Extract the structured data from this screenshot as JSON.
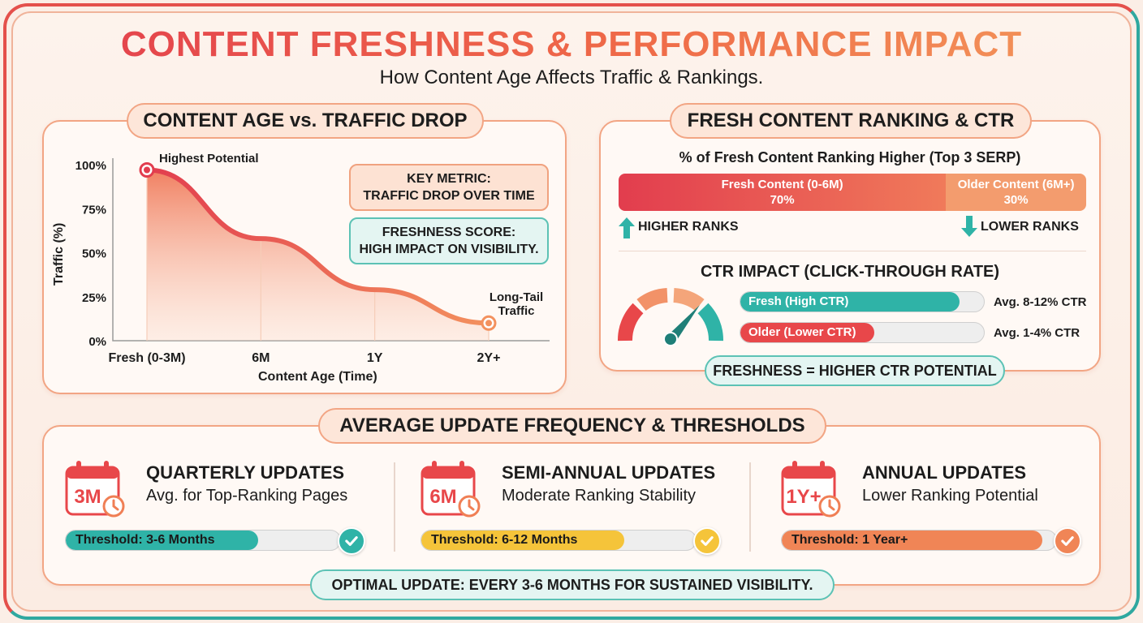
{
  "title": "CONTENT FRESHNESS & PERFORMANCE IMPACT",
  "subtitle": "How Content Age Affects Traffic & Rankings.",
  "colors": {
    "red": "#e8474a",
    "orange": "#f07f55",
    "teal": "#2fb3a7",
    "yellow": "#f5c43a"
  },
  "left_panel": {
    "heading": "CONTENT AGE vs. TRAFFIC DROP",
    "y_axis_label": "Traffic (%)",
    "x_axis_label": "Content Age (Time)",
    "annotation_start": "Highest Potential",
    "annotation_end_1": "Long-Tail",
    "annotation_end_2": "Traffic",
    "key_metric_1": "KEY METRIC:",
    "key_metric_2": "TRAFFIC DROP OVER TIME",
    "freshness_1": "FRESHNESS SCORE:",
    "freshness_2": "HIGH IMPACT ON VISIBILITY."
  },
  "chart_data": [
    {
      "type": "area",
      "xlabel": "Content Age (Time)",
      "ylabel": "Traffic (%)",
      "categories": [
        "Fresh (0-3M)",
        "6M",
        "1Y",
        "2Y+"
      ],
      "values": [
        97,
        58,
        29,
        10
      ],
      "y_ticks": [
        "0%",
        "25%",
        "50%",
        "75%",
        "100%"
      ],
      "ylim": [
        0,
        100
      ],
      "grid": false
    },
    {
      "type": "bar",
      "title": "% of Fresh Content Ranking Higher (Top 3 SERP)",
      "categories": [
        "Fresh Content (0-6M)",
        "Older Content (6M+)"
      ],
      "values": [
        70,
        30
      ],
      "value_labels": [
        "70%",
        "30%"
      ]
    },
    {
      "type": "bar",
      "title": "CTR IMPACT (CLICK-THROUGH RATE)",
      "categories": [
        "Fresh (High CTR)",
        "Older (Lower CTR)"
      ],
      "values": [
        0.9,
        0.55
      ],
      "value_labels": [
        "Avg. 8-12% CTR",
        "Avg. 1-4% CTR"
      ]
    }
  ],
  "right_panel": {
    "heading": "FRESH CONTENT RANKING & CTR",
    "higher_ranks": "HIGHER RANKS",
    "lower_ranks": "LOWER RANKS",
    "footer": "FRESHNESS = HIGHER CTR POTENTIAL"
  },
  "bottom_panel": {
    "heading": "AVERAGE UPDATE FREQUENCY & THRESHOLDS",
    "footer": "OPTIMAL UPDATE: EVERY 3-6 MONTHS FOR SUSTAINED VISIBILITY.",
    "items": [
      {
        "badge": "3M",
        "title": "QUARTERLY UPDATES",
        "subtitle": "Avg. for Top-Ranking Pages",
        "threshold": "Threshold: 3-6 Months",
        "fill": 0.7,
        "color": "#2fb3a7",
        "icon": "calendar-icon"
      },
      {
        "badge": "6M",
        "title": "SEMI-ANNUAL UPDATES",
        "subtitle": "Moderate Ranking Stability",
        "threshold": "Threshold: 6-12 Months",
        "fill": 0.74,
        "color": "#f5c43a",
        "icon": "calendar-icon"
      },
      {
        "badge": "1Y+",
        "title": "ANNUAL UPDATES",
        "subtitle": "Lower Ranking Potential",
        "threshold": "Threshold: 1 Year+",
        "fill": 0.95,
        "color": "#f08556",
        "icon": "calendar-icon"
      }
    ]
  }
}
